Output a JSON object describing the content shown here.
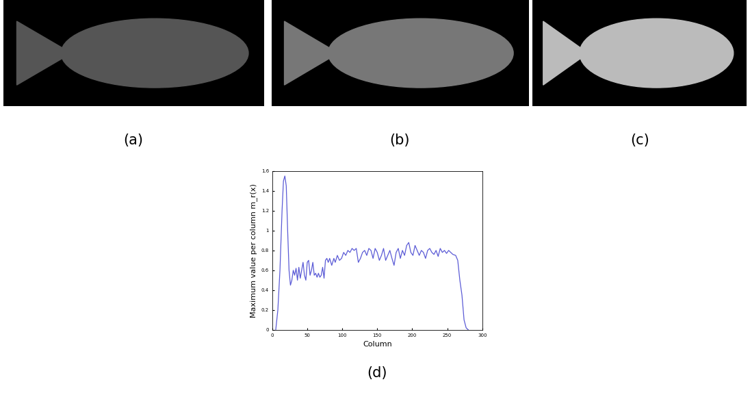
{
  "panel_labels": [
    "(a)",
    "(b)",
    "(c)",
    "(d)"
  ],
  "chart_data": {
    "type": "line",
    "x_label": "Column",
    "y_label": "Maximum value per column m_r(x)",
    "xlim": [
      0,
      300
    ],
    "xticks": [
      0,
      50,
      100,
      150,
      200,
      250,
      300
    ],
    "ylim": [
      0,
      1.6
    ],
    "yticks": [
      0,
      0.2,
      0.4,
      0.6,
      0.8,
      1,
      1.2,
      1.4,
      1.6
    ],
    "grid": false,
    "color": "#5b5bd6",
    "x": [
      5,
      8,
      11,
      14,
      16,
      18,
      20,
      22,
      24,
      26,
      28,
      30,
      32,
      34,
      36,
      38,
      40,
      42,
      44,
      46,
      48,
      50,
      52,
      54,
      56,
      58,
      60,
      62,
      64,
      66,
      68,
      70,
      72,
      74,
      76,
      78,
      80,
      82,
      85,
      88,
      90,
      93,
      96,
      99,
      102,
      105,
      108,
      111,
      114,
      117,
      120,
      123,
      126,
      129,
      132,
      135,
      138,
      141,
      144,
      147,
      150,
      153,
      156,
      159,
      162,
      165,
      168,
      171,
      174,
      177,
      180,
      183,
      186,
      189,
      192,
      195,
      198,
      201,
      204,
      207,
      210,
      213,
      216,
      219,
      222,
      225,
      228,
      231,
      234,
      237,
      240,
      243,
      246,
      249,
      252,
      255,
      258,
      262,
      265,
      268,
      271,
      274,
      277,
      280
    ],
    "values": [
      0,
      0.2,
      0.6,
      1.2,
      1.5,
      1.55,
      1.45,
      1.0,
      0.6,
      0.45,
      0.5,
      0.6,
      0.55,
      0.62,
      0.5,
      0.63,
      0.52,
      0.6,
      0.68,
      0.55,
      0.5,
      0.68,
      0.7,
      0.55,
      0.6,
      0.68,
      0.55,
      0.57,
      0.53,
      0.57,
      0.53,
      0.55,
      0.63,
      0.52,
      0.7,
      0.72,
      0.68,
      0.72,
      0.65,
      0.72,
      0.68,
      0.75,
      0.7,
      0.72,
      0.78,
      0.75,
      0.8,
      0.78,
      0.82,
      0.8,
      0.82,
      0.68,
      0.72,
      0.78,
      0.8,
      0.75,
      0.82,
      0.8,
      0.72,
      0.82,
      0.78,
      0.7,
      0.75,
      0.82,
      0.7,
      0.75,
      0.8,
      0.72,
      0.65,
      0.78,
      0.82,
      0.72,
      0.8,
      0.75,
      0.85,
      0.88,
      0.78,
      0.75,
      0.85,
      0.8,
      0.75,
      0.8,
      0.78,
      0.72,
      0.8,
      0.82,
      0.78,
      0.76,
      0.8,
      0.74,
      0.82,
      0.78,
      0.8,
      0.77,
      0.8,
      0.78,
      0.76,
      0.75,
      0.7,
      0.5,
      0.35,
      0.1,
      0.02,
      0
    ]
  }
}
